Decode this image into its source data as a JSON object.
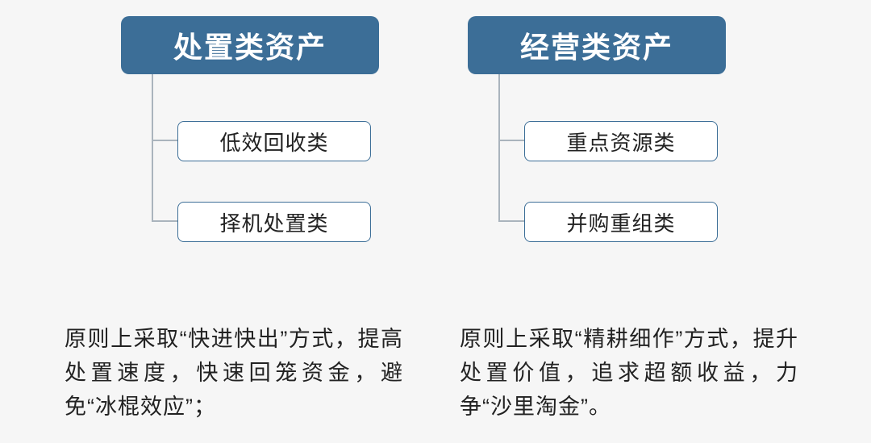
{
  "colors": {
    "header_bg": "#3c6e97",
    "header_text": "#ffffff",
    "child_border": "#3c6e97",
    "child_text": "#222222",
    "connector": "#aab4bd",
    "desc_text": "#222222",
    "page_bg": "#f6f6f6"
  },
  "diagram": {
    "left": {
      "title": "处置类资产",
      "children": [
        "低效回收类",
        "择机处置类"
      ]
    },
    "right": {
      "title": "经营类资产",
      "children": [
        "重点资源类",
        "并购重组类"
      ]
    }
  },
  "descriptions": {
    "left": "原则上采取“快进快出”方式，提高处置速度，快速回笼资金，避免“冰棍效应”；",
    "right": "原则上采取“精耕细作”方式，提升处置价值，追求超额收益，力争“沙里淘金”。"
  }
}
